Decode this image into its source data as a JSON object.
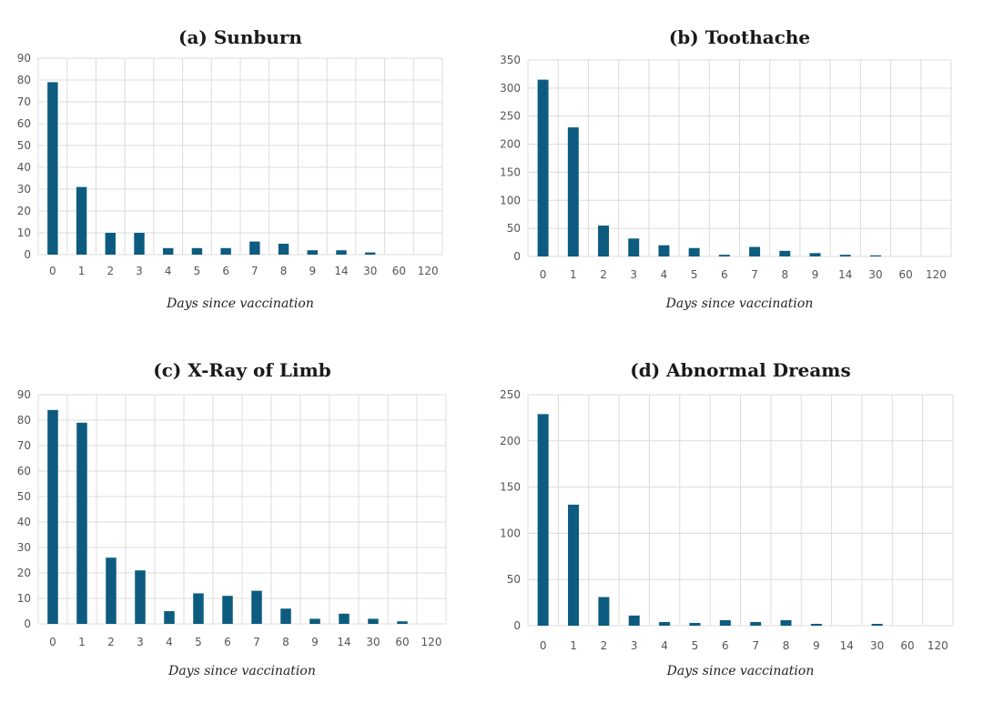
{
  "chart_data": [
    {
      "type": "bar",
      "title": "(a) Sunburn",
      "xlabel": "Days since vaccination",
      "ylabel": "",
      "ylim": [
        0,
        90
      ],
      "yticks": [
        0,
        10,
        20,
        30,
        40,
        50,
        60,
        70,
        80,
        90
      ],
      "categories": [
        "0",
        "1",
        "2",
        "3",
        "4",
        "5",
        "6",
        "7",
        "8",
        "9",
        "14",
        "30",
        "60",
        "120"
      ],
      "values": [
        79,
        31,
        10,
        10,
        3,
        3,
        3,
        6,
        5,
        2,
        2,
        1,
        0,
        0
      ],
      "color": "#0d5c80",
      "grid": true
    },
    {
      "type": "bar",
      "title": "(b) Toothache",
      "xlabel": "Days since vaccination",
      "ylabel": "",
      "ylim": [
        0,
        350
      ],
      "yticks": [
        0,
        50,
        100,
        150,
        200,
        250,
        300,
        350
      ],
      "categories": [
        "0",
        "1",
        "2",
        "3",
        "4",
        "5",
        "6",
        "7",
        "8",
        "9",
        "14",
        "30",
        "60",
        "120"
      ],
      "values": [
        315,
        230,
        55,
        32,
        20,
        15,
        3,
        17,
        10,
        6,
        3,
        2,
        0,
        0
      ],
      "color": "#0d5c80",
      "grid": true
    },
    {
      "type": "bar",
      "title": "(c) X-Ray of Limb",
      "xlabel": "Days since vaccination",
      "ylabel": "",
      "ylim": [
        0,
        90
      ],
      "yticks": [
        0,
        10,
        20,
        30,
        40,
        50,
        60,
        70,
        80,
        90
      ],
      "categories": [
        "0",
        "1",
        "2",
        "3",
        "4",
        "5",
        "6",
        "7",
        "8",
        "9",
        "14",
        "30",
        "60",
        "120"
      ],
      "values": [
        84,
        79,
        26,
        21,
        5,
        12,
        11,
        13,
        6,
        2,
        4,
        2,
        1,
        0
      ],
      "color": "#0d5c80",
      "grid": true
    },
    {
      "type": "bar",
      "title": "(d) Abnormal Dreams",
      "xlabel": "Days since vaccination",
      "ylabel": "",
      "ylim": [
        0,
        250
      ],
      "yticks": [
        0,
        50,
        100,
        150,
        200,
        250
      ],
      "categories": [
        "0",
        "1",
        "2",
        "3",
        "4",
        "5",
        "6",
        "7",
        "8",
        "9",
        "14",
        "30",
        "60",
        "120"
      ],
      "values": [
        229,
        131,
        31,
        11,
        4,
        3,
        6,
        4,
        6,
        2,
        0,
        2,
        0,
        0
      ],
      "color": "#0d5c80",
      "grid": true
    }
  ]
}
